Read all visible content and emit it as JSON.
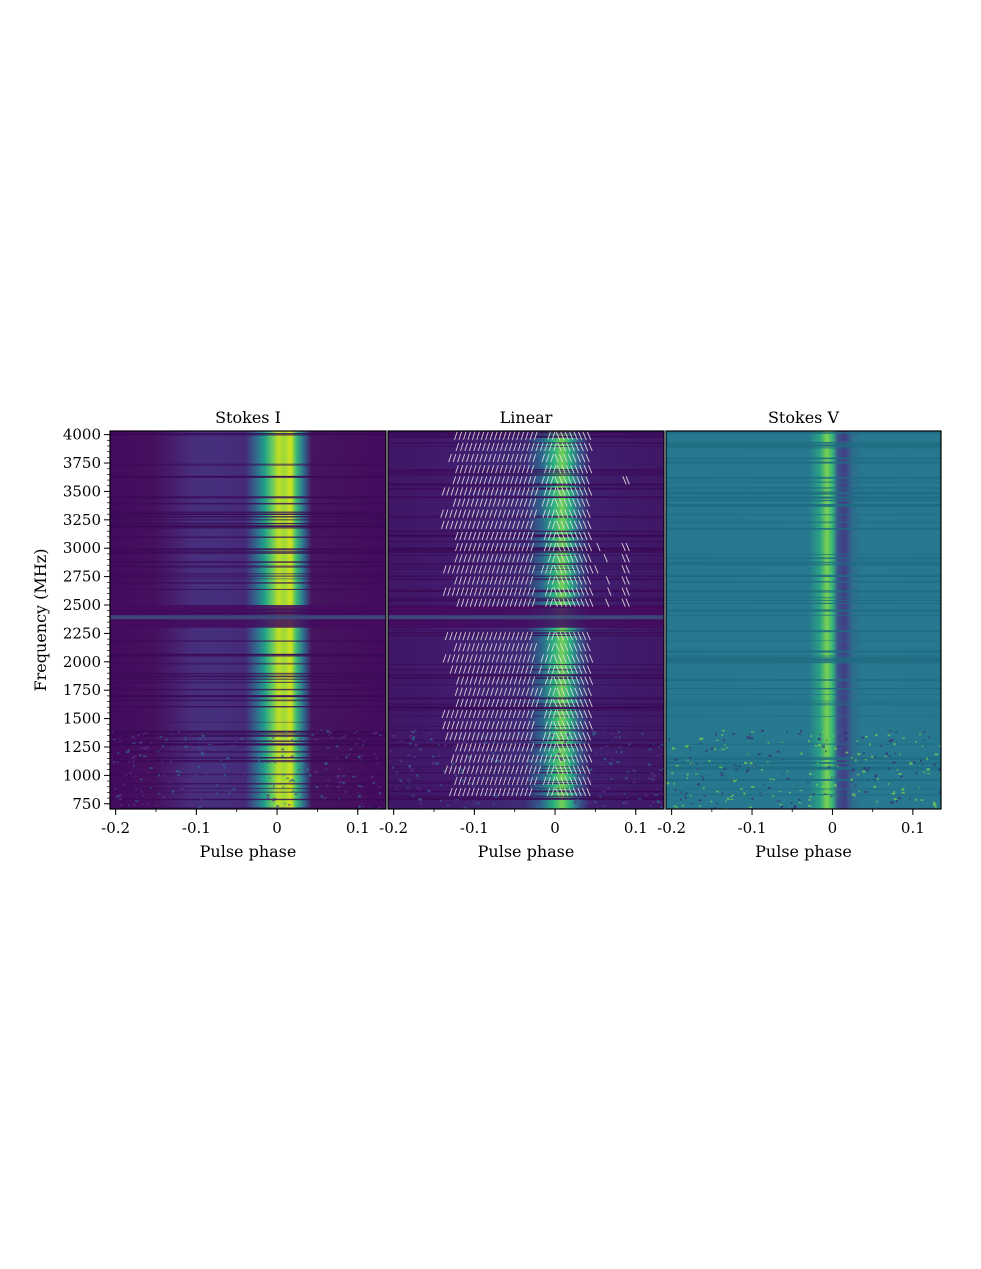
{
  "chart_data": [
    {
      "type": "heatmap",
      "title": "Stokes I",
      "xlabel": "Pulse phase",
      "ylabel": "Frequency (MHz)",
      "xlim": [
        -0.207,
        0.135
      ],
      "ylim": [
        704,
        4032
      ],
      "x_ticks": [
        -0.2,
        -0.1,
        0,
        0.1
      ],
      "x_tick_labels": [
        "-0.2",
        "-0.1",
        "0",
        "0.1"
      ],
      "y_ticks": [
        750,
        1000,
        1250,
        1500,
        1750,
        2000,
        2250,
        2500,
        2750,
        3000,
        3250,
        3500,
        3750,
        4000
      ],
      "y_tick_labels": [
        "750",
        "1000",
        "1250",
        "1500",
        "1750",
        "2000",
        "2250",
        "2500",
        "2750",
        "3000",
        "3250",
        "3500",
        "3750",
        "4000"
      ],
      "colormap": "viridis",
      "features": {
        "main_pulse_phase_range": [
          -0.02,
          0.035
        ],
        "precursor_phase_range": [
          -0.16,
          -0.03
        ],
        "masked_band_mhz": [
          2300,
          2500
        ]
      }
    },
    {
      "type": "heatmap",
      "title": "Linear",
      "xlabel": "Pulse phase",
      "xlim": [
        -0.207,
        0.135
      ],
      "ylim": [
        704,
        4032
      ],
      "x_ticks": [
        -0.2,
        -0.1,
        0,
        0.1
      ],
      "x_tick_labels": [
        "-0.2",
        "-0.1",
        "0",
        "0.1"
      ],
      "colormap": "viridis",
      "overlay": "polarization position angle ticks (white)",
      "features": {
        "main_pulse_phase_range": [
          -0.01,
          0.035
        ],
        "masked_band_mhz": [
          2300,
          2500
        ]
      }
    },
    {
      "type": "heatmap",
      "title": "Stokes V",
      "xlabel": "Pulse phase",
      "xlim": [
        -0.207,
        0.135
      ],
      "ylim": [
        704,
        4032
      ],
      "x_ticks": [
        -0.2,
        -0.1,
        0,
        0.1
      ],
      "x_tick_labels": [
        "-0.2",
        "-0.1",
        "0",
        "0.1"
      ],
      "colormap": "viridis",
      "features": {
        "positive_component_phase_range": [
          -0.015,
          0.012
        ],
        "negative_component_phase_range": [
          0.012,
          0.035
        ]
      }
    }
  ]
}
